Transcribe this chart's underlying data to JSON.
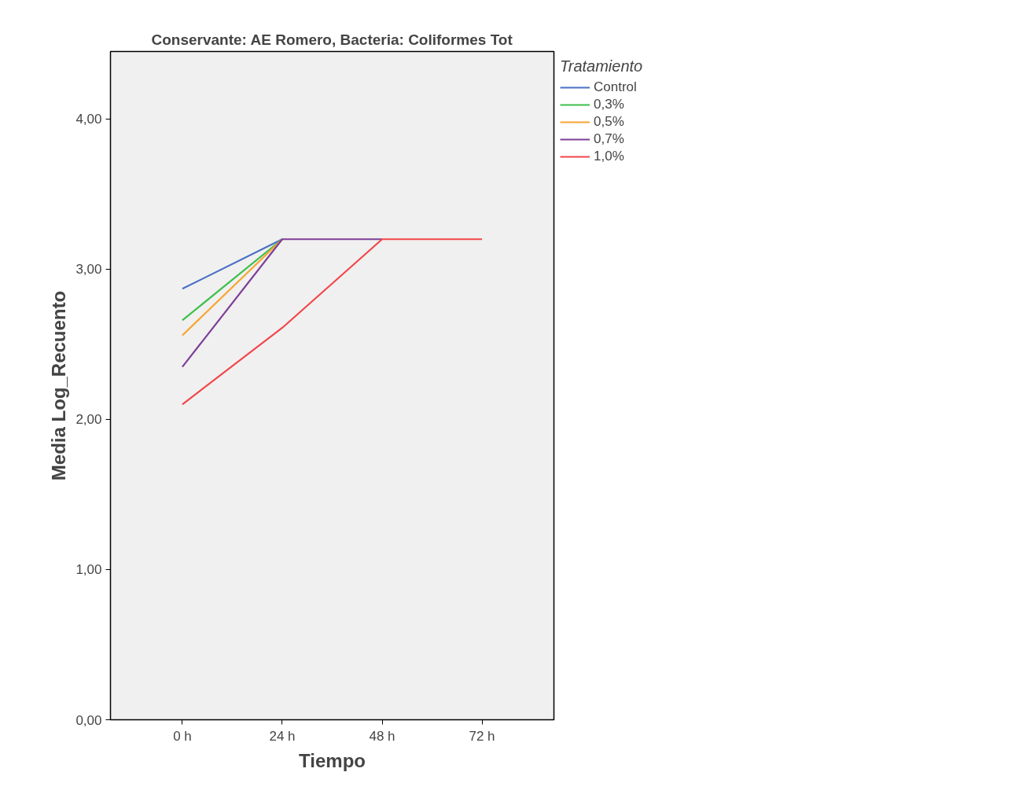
{
  "chart_data": {
    "type": "line",
    "title": "Conservante: AE Romero, Bacteria: Coliformes Tot",
    "xlabel": "Tiempo",
    "ylabel": "Media Log_Recuento",
    "legend_title": "Tratamiento",
    "categories": [
      "0 h",
      "24 h",
      "48 h",
      "72 h"
    ],
    "ylim": [
      0,
      4.45
    ],
    "yticks": [
      {
        "value": 0,
        "label": "0,00"
      },
      {
        "value": 1,
        "label": "1,00"
      },
      {
        "value": 2,
        "label": "2,00"
      },
      {
        "value": 3,
        "label": "3,00"
      },
      {
        "value": 4,
        "label": "4,00"
      }
    ],
    "grid": false,
    "legend": "right",
    "series": [
      {
        "name": "Control",
        "color": "#4a6fc4",
        "values": [
          2.87,
          3.2,
          null,
          null
        ]
      },
      {
        "name": "0,3%",
        "color": "#3dbf4b",
        "values": [
          2.66,
          3.2,
          null,
          null
        ]
      },
      {
        "name": "0,5%",
        "color": "#f7a531",
        "values": [
          2.56,
          3.2,
          null,
          null
        ]
      },
      {
        "name": "0,7%",
        "color": "#7e3f98",
        "values": [
          2.35,
          3.2,
          3.2,
          null
        ]
      },
      {
        "name": "1,0%",
        "color": "#f2464a",
        "values": [
          2.1,
          2.61,
          3.2,
          3.2
        ]
      }
    ]
  }
}
